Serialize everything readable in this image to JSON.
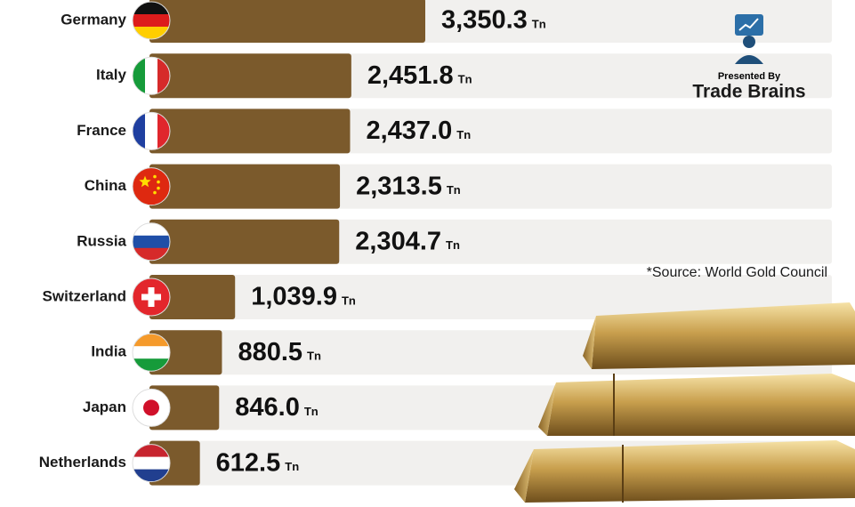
{
  "chart_data": {
    "type": "bar",
    "orientation": "horizontal",
    "categories": [
      "Germany",
      "Italy",
      "France",
      "China",
      "Russia",
      "Switzerland",
      "India",
      "Japan",
      "Netherlands"
    ],
    "values": [
      3350.3,
      2451.8,
      2437.0,
      2313.5,
      2304.7,
      1039.9,
      880.5,
      846.0,
      612.5
    ],
    "value_labels": [
      "3,350.3",
      "2,451.8",
      "2,437.0",
      "2,313.5",
      "2,304.7",
      "1,039.9",
      "880.5",
      "846.0",
      "612.5"
    ],
    "unit": "Tn",
    "color": "#7b5a2c",
    "presenter_label": "Presented By",
    "presenter": "Trade Brains",
    "source": "*Source: World Gold Council"
  }
}
